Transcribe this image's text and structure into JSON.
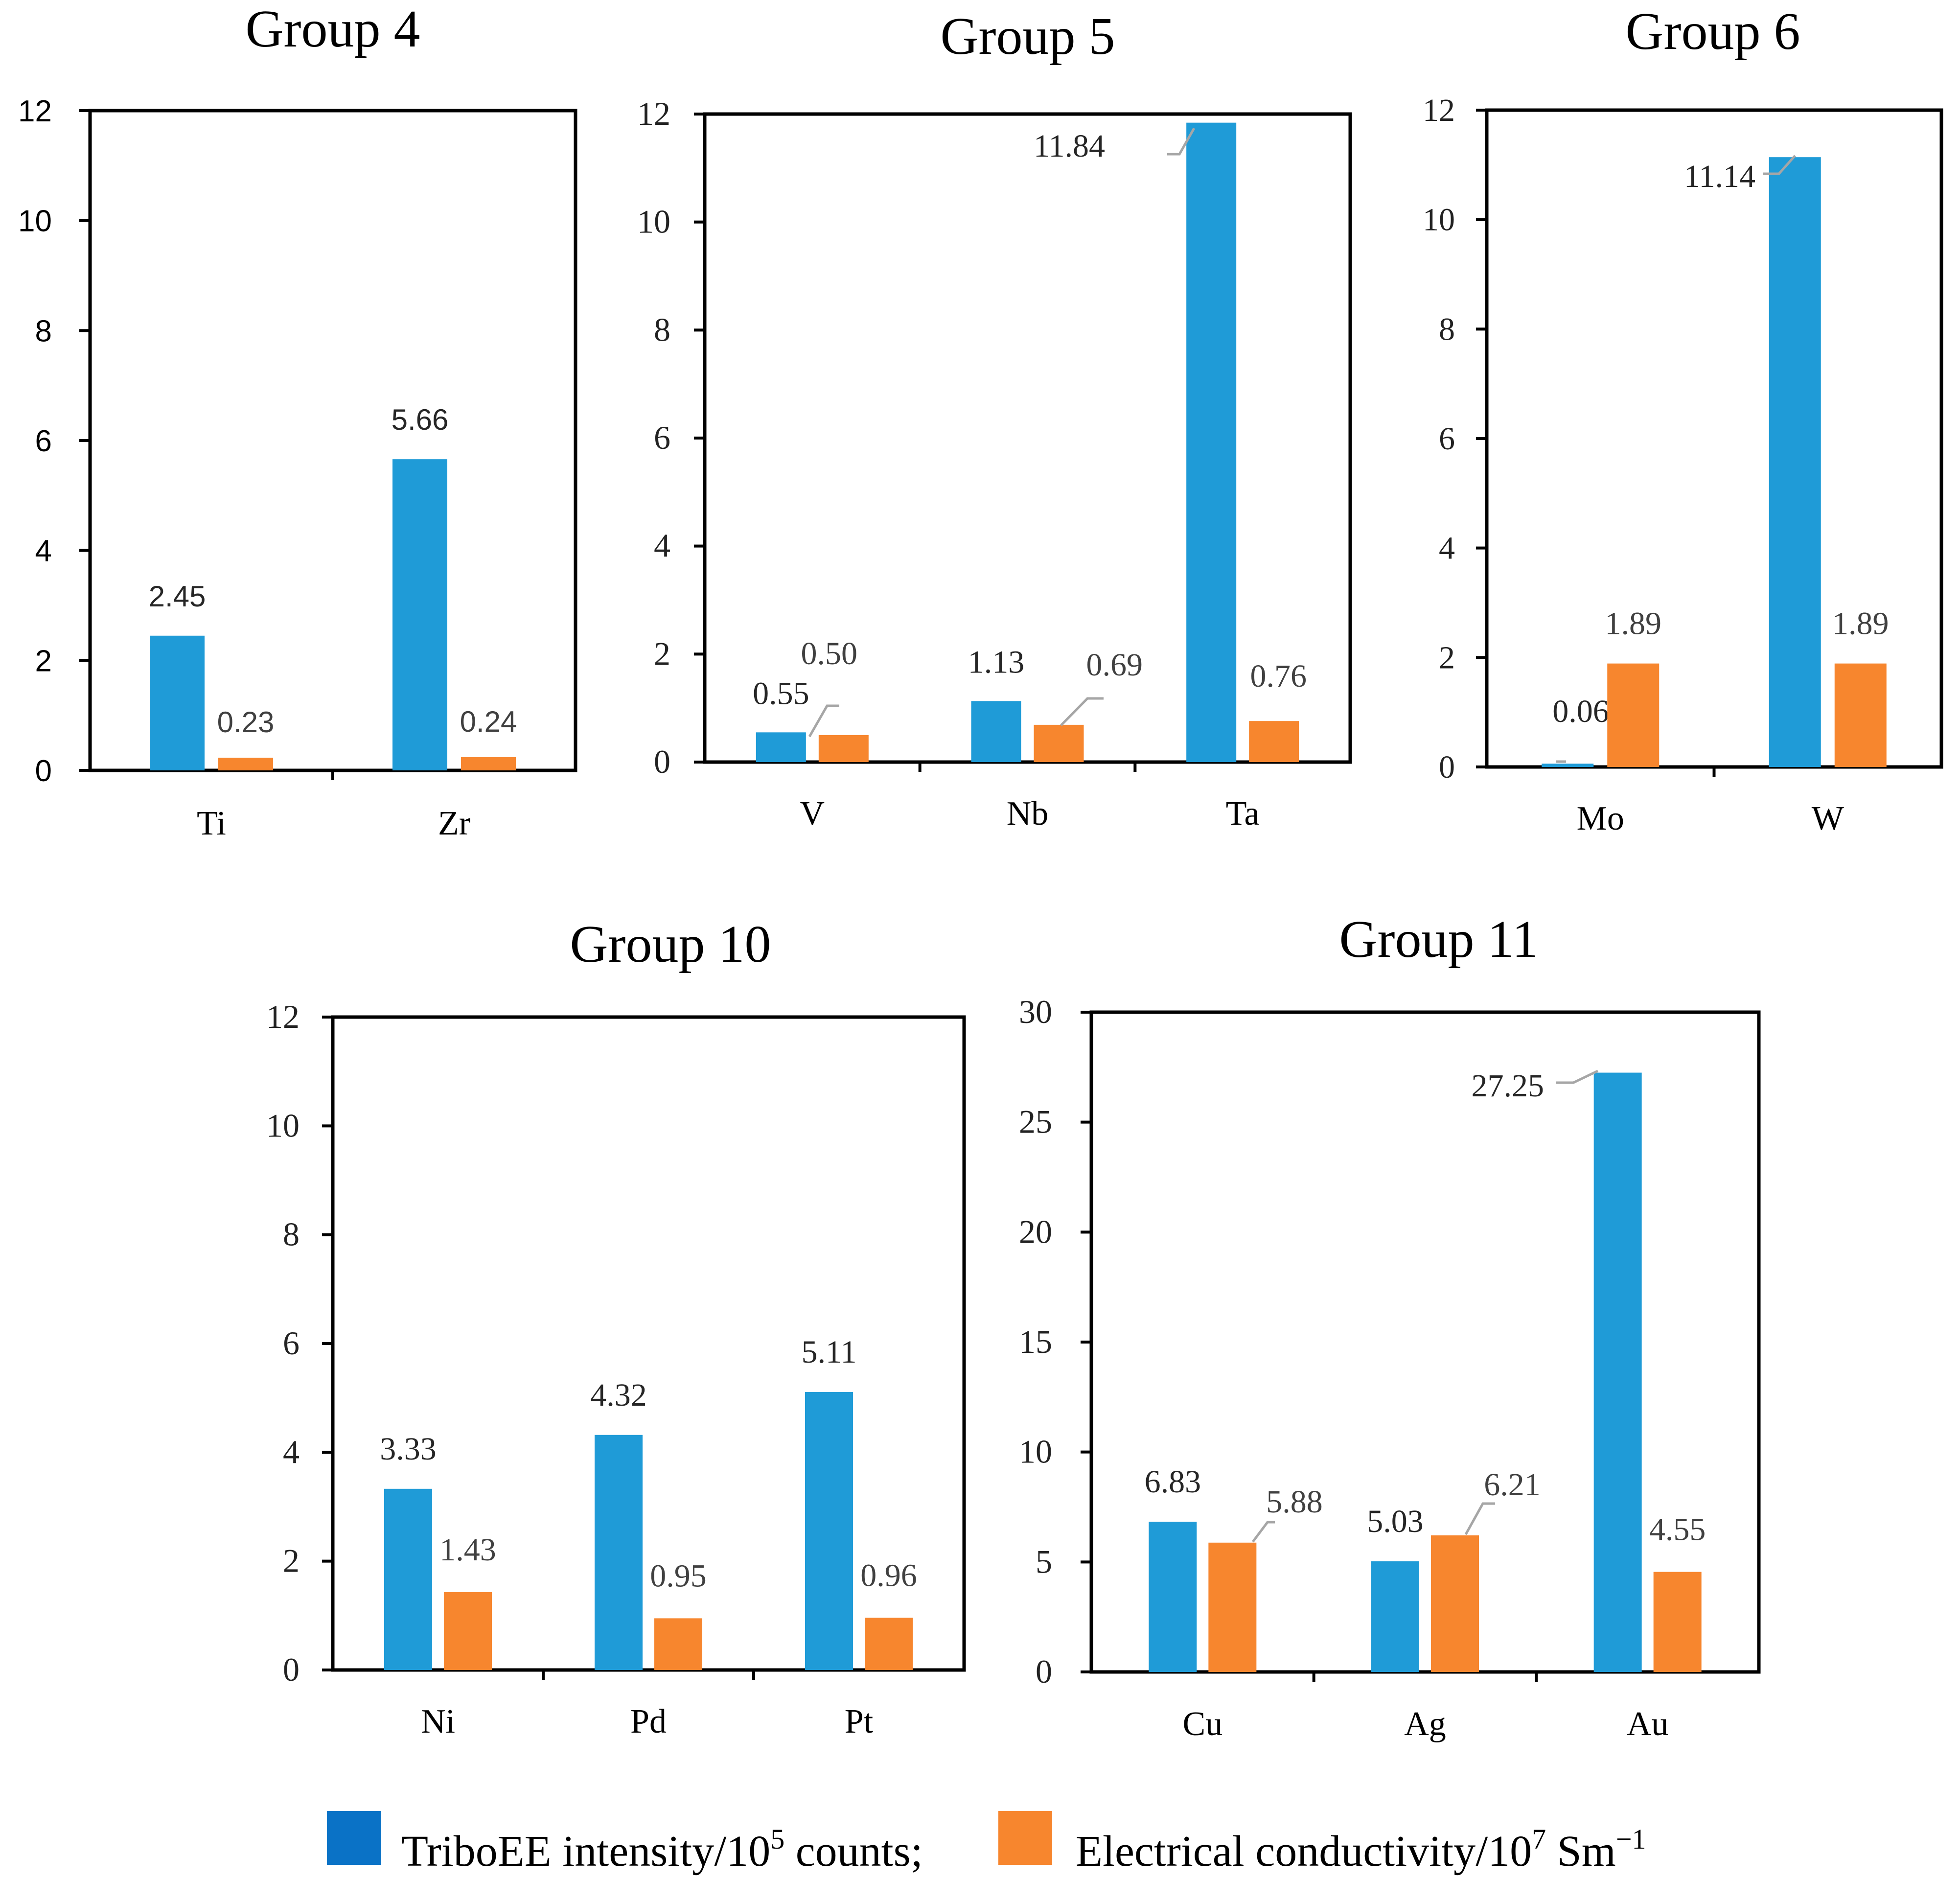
{
  "colors": {
    "tribo": "#1F9BD7",
    "conductivity": "#F7862E",
    "legend_tribo": "#0A72C6",
    "leader": "#A6A6A6",
    "axis": "#000000"
  },
  "legend": {
    "tribo_text": "TriboEE intensity/10",
    "tribo_sup": "5",
    "tribo_suffix": " counts;",
    "cond_text": "Electrical conductivity/10",
    "cond_sup": "7",
    "cond_suffix": " Sm",
    "cond_sup2": "−1"
  },
  "chart_data": [
    {
      "type": "bar",
      "title": "Group 4",
      "categories": [
        "Ti",
        "Zr"
      ],
      "series": [
        {
          "name": "TriboEE intensity/10^5 counts",
          "values": [
            2.45,
            5.66
          ],
          "labels": [
            "2.45",
            "5.66"
          ]
        },
        {
          "name": "Electrical conductivity/10^7 Sm^-1",
          "values": [
            0.23,
            0.24
          ],
          "labels": [
            "0.23",
            "0.24"
          ]
        }
      ],
      "ylim": [
        0,
        12
      ],
      "yticks": [
        "0",
        "2",
        "4",
        "6",
        "8",
        "10",
        "12"
      ],
      "grid": false
    },
    {
      "type": "bar",
      "title": "Group 5",
      "categories": [
        "V",
        "Nb",
        "Ta"
      ],
      "series": [
        {
          "name": "TriboEE intensity/10^5 counts",
          "values": [
            0.55,
            1.13,
            11.84
          ],
          "labels": [
            "0.55",
            "1.13",
            "11.84"
          ]
        },
        {
          "name": "Electrical conductivity/10^7 Sm^-1",
          "values": [
            0.5,
            0.69,
            0.76
          ],
          "labels": [
            "0.50",
            "0.69",
            "0.76"
          ]
        }
      ],
      "ylim": [
        0,
        12
      ],
      "yticks": [
        "0",
        "2",
        "4",
        "6",
        "8",
        "10",
        "12"
      ],
      "grid": false
    },
    {
      "type": "bar",
      "title": "Group 6",
      "categories": [
        "Mo",
        "W"
      ],
      "series": [
        {
          "name": "TriboEE intensity/10^5 counts",
          "values": [
            0.06,
            11.14
          ],
          "labels": [
            "0.06",
            "11.14"
          ]
        },
        {
          "name": "Electrical conductivity/10^7 Sm^-1",
          "values": [
            1.89,
            1.89
          ],
          "labels": [
            "1.89",
            "1.89"
          ]
        }
      ],
      "ylim": [
        0,
        12
      ],
      "yticks": [
        "0",
        "2",
        "4",
        "6",
        "8",
        "10",
        "12"
      ],
      "grid": false
    },
    {
      "type": "bar",
      "title": "Group 10",
      "categories": [
        "Ni",
        "Pd",
        "Pt"
      ],
      "series": [
        {
          "name": "TriboEE intensity/10^5 counts",
          "values": [
            3.33,
            4.32,
            5.11
          ],
          "labels": [
            "3.33",
            "4.32",
            "5.11"
          ]
        },
        {
          "name": "Electrical conductivity/10^7 Sm^-1",
          "values": [
            1.43,
            0.95,
            0.96
          ],
          "labels": [
            "1.43",
            "0.95",
            "0.96"
          ]
        }
      ],
      "ylim": [
        0,
        12
      ],
      "yticks": [
        "0",
        "2",
        "4",
        "6",
        "8",
        "10",
        "12"
      ],
      "grid": false
    },
    {
      "type": "bar",
      "title": "Group 11",
      "categories": [
        "Cu",
        "Ag",
        "Au"
      ],
      "series": [
        {
          "name": "TriboEE intensity/10^5 counts",
          "values": [
            6.83,
            5.03,
            27.25
          ],
          "labels": [
            "6.83",
            "5.03",
            "27.25"
          ]
        },
        {
          "name": "Electrical conductivity/10^7 Sm^-1",
          "values": [
            5.88,
            6.21,
            4.55
          ],
          "labels": [
            "5.88",
            "6.21",
            "4.55"
          ]
        }
      ],
      "ylim": [
        0,
        30
      ],
      "yticks": [
        "0",
        "5",
        "10",
        "15",
        "20",
        "25",
        "30"
      ],
      "grid": false
    }
  ]
}
